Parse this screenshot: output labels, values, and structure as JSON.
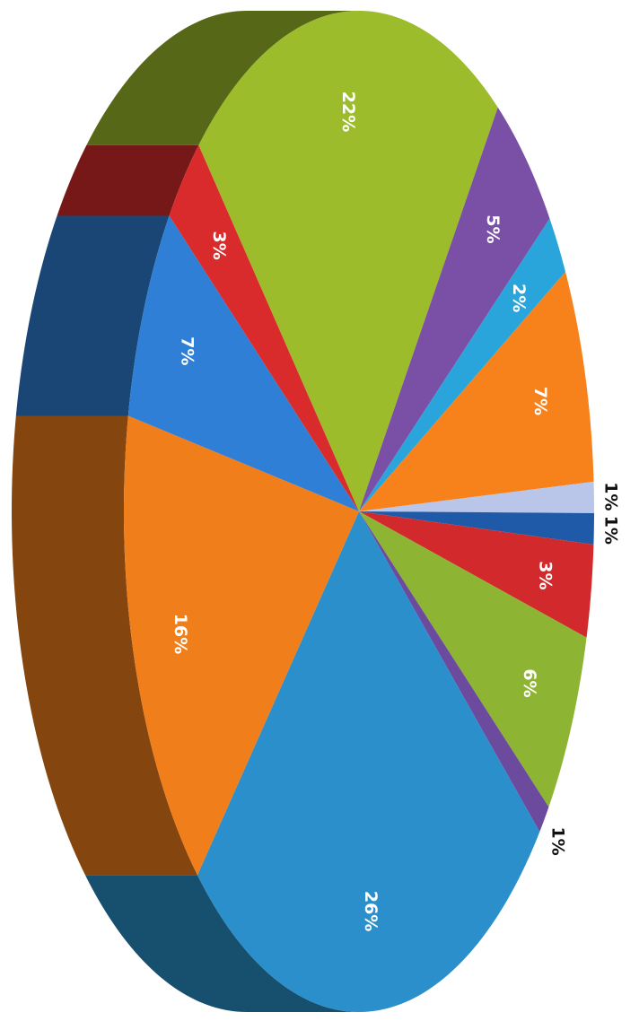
{
  "chart_data": {
    "type": "pie",
    "values": [
      22,
      5,
      2,
      7,
      1,
      1,
      3,
      6,
      1,
      26,
      16,
      7,
      3
    ],
    "value_labels": [
      "22%",
      "5%",
      "2%",
      "7%",
      "1%",
      "1%",
      "3%",
      "6%",
      "1%",
      "26%",
      "16%",
      "7%",
      "3%"
    ],
    "colors": [
      "#9cbc2c",
      "#7a4fa6",
      "#29a5dc",
      "#f7821c",
      "#b9c6ea",
      "#1f5aa8",
      "#d22a2c",
      "#8db533",
      "#6c4a9e",
      "#2a8fca",
      "#f07e1b",
      "#2f7fd6",
      "#d92b2c"
    ]
  }
}
